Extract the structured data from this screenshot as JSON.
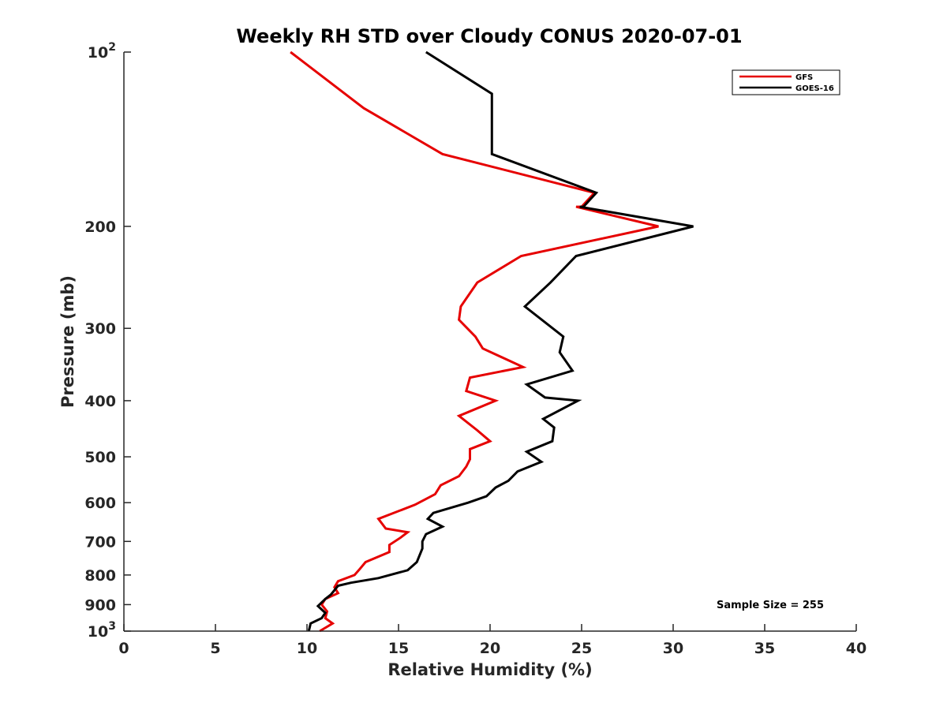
{
  "chart_data": {
    "type": "line",
    "title": "Weekly RH STD over Cloudy CONUS 2020-07-01",
    "xlabel": "Relative Humidity (%)",
    "ylabel": "Pressure (mb)",
    "xlim": [
      0,
      40
    ],
    "ylim": [
      100,
      1000
    ],
    "yscale": "log",
    "y_direction": "reversed",
    "grid": false,
    "legend_position": "top-right",
    "x_ticks": [
      0,
      5,
      10,
      15,
      20,
      25,
      30,
      35,
      40
    ],
    "y_ticks": [
      {
        "value": 100,
        "label": "10",
        "sup": "2"
      },
      {
        "value": 200,
        "label": "200",
        "sup": ""
      },
      {
        "value": 300,
        "label": "300",
        "sup": ""
      },
      {
        "value": 400,
        "label": "400",
        "sup": ""
      },
      {
        "value": 500,
        "label": "500",
        "sup": ""
      },
      {
        "value": 600,
        "label": "600",
        "sup": ""
      },
      {
        "value": 700,
        "label": "700",
        "sup": ""
      },
      {
        "value": 800,
        "label": "800",
        "sup": ""
      },
      {
        "value": 900,
        "label": "900",
        "sup": ""
      },
      {
        "value": 1000,
        "label": "10",
        "sup": "3"
      }
    ],
    "series": [
      {
        "name": "GFS",
        "color": "#e60000",
        "points": [
          [
            9.1,
            100
          ],
          [
            13.1,
            125
          ],
          [
            17.4,
            150
          ],
          [
            25.7,
            175
          ],
          [
            25.0,
            185
          ],
          [
            24.7,
            185
          ],
          [
            29.2,
            200
          ],
          [
            21.7,
            225
          ],
          [
            19.3,
            250
          ],
          [
            18.4,
            275
          ],
          [
            18.3,
            290
          ],
          [
            19.2,
            310
          ],
          [
            19.6,
            325
          ],
          [
            21.8,
            350
          ],
          [
            18.9,
            365
          ],
          [
            18.7,
            385
          ],
          [
            20.3,
            400
          ],
          [
            18.3,
            425
          ],
          [
            19.3,
            450
          ],
          [
            20.0,
            470
          ],
          [
            18.9,
            485
          ],
          [
            18.9,
            505
          ],
          [
            18.7,
            520
          ],
          [
            18.3,
            540
          ],
          [
            17.3,
            560
          ],
          [
            17.0,
            580
          ],
          [
            15.9,
            605
          ],
          [
            13.9,
            640
          ],
          [
            14.3,
            665
          ],
          [
            15.5,
            675
          ],
          [
            15.1,
            690
          ],
          [
            14.5,
            710
          ],
          [
            14.5,
            730
          ],
          [
            13.2,
            760
          ],
          [
            12.9,
            780
          ],
          [
            12.6,
            800
          ],
          [
            11.7,
            820
          ],
          [
            11.5,
            840
          ],
          [
            11.7,
            860
          ],
          [
            11.0,
            880
          ],
          [
            10.8,
            900
          ],
          [
            11.1,
            925
          ],
          [
            11.0,
            950
          ],
          [
            11.4,
            970
          ],
          [
            10.7,
            1000
          ]
        ]
      },
      {
        "name": "GOES-16",
        "color": "#000000",
        "points": [
          [
            16.5,
            100
          ],
          [
            20.1,
            118
          ],
          [
            20.1,
            150
          ],
          [
            25.8,
            175
          ],
          [
            25.1,
            185
          ],
          [
            24.9,
            185
          ],
          [
            31.1,
            200
          ],
          [
            24.7,
            225
          ],
          [
            23.3,
            250
          ],
          [
            21.9,
            275
          ],
          [
            24.0,
            310
          ],
          [
            23.8,
            330
          ],
          [
            24.5,
            355
          ],
          [
            22.0,
            375
          ],
          [
            23.0,
            395
          ],
          [
            24.8,
            400
          ],
          [
            22.9,
            430
          ],
          [
            23.5,
            445
          ],
          [
            23.4,
            470
          ],
          [
            22.0,
            490
          ],
          [
            22.8,
            510
          ],
          [
            21.5,
            530
          ],
          [
            21.0,
            550
          ],
          [
            20.3,
            565
          ],
          [
            19.8,
            585
          ],
          [
            18.8,
            600
          ],
          [
            16.9,
            625
          ],
          [
            16.6,
            640
          ],
          [
            17.4,
            660
          ],
          [
            16.5,
            680
          ],
          [
            16.3,
            700
          ],
          [
            16.3,
            720
          ],
          [
            16.0,
            760
          ],
          [
            15.5,
            785
          ],
          [
            13.9,
            810
          ],
          [
            12.4,
            825
          ],
          [
            11.7,
            835
          ],
          [
            11.3,
            865
          ],
          [
            11.0,
            880
          ],
          [
            10.6,
            905
          ],
          [
            11.0,
            930
          ],
          [
            10.8,
            950
          ],
          [
            10.2,
            970
          ],
          [
            10.1,
            1000
          ]
        ]
      }
    ],
    "annotation": "Sample Size = 255"
  }
}
